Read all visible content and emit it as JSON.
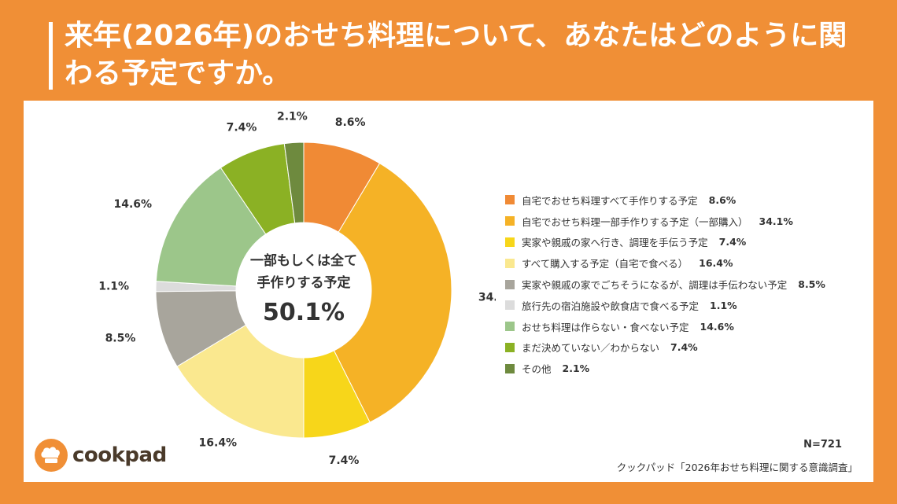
{
  "title": "来年(2026年)のおせち料理について、あなたはどのように関わる予定ですか。",
  "center": {
    "line1": "一部もしくは全て",
    "line2": "手作りする予定",
    "value": "50.1%"
  },
  "chart_data": {
    "type": "pie",
    "title": "来年(2026年)のおせち料理について、あなたはどのように関わる予定ですか。",
    "series": [
      {
        "label": "自宅でおせち料理すべて手作りする予定",
        "value": 8.6,
        "display": "8.6%",
        "color": "#F08A35"
      },
      {
        "label": "自宅でおせち料理一部手作りする予定（一部購入）",
        "value": 34.1,
        "display": "34.1%",
        "color": "#F5B226"
      },
      {
        "label": "実家や親戚の家へ行き、調理を手伝う予定",
        "value": 7.4,
        "display": "7.4%",
        "color": "#F7D61A"
      },
      {
        "label": "すべて購入する予定（自宅で食べる）",
        "value": 16.4,
        "display": "16.4%",
        "color": "#FAE88F"
      },
      {
        "label": "実家や親戚の家でごちそうになるが、調理は手伝わない予定",
        "value": 8.5,
        "display": "8.5%",
        "color": "#A8A59C"
      },
      {
        "label": "旅行先の宿泊施設や飲食店で食べる予定",
        "value": 1.1,
        "display": "1.1%",
        "color": "#DCDCDC"
      },
      {
        "label": "おせち料理は作らない・食べない予定",
        "value": 14.6,
        "display": "14.6%",
        "color": "#9CC68A"
      },
      {
        "label": "まだ決めていない／わからない",
        "value": 7.4,
        "display": "7.4%",
        "color": "#8BB124"
      },
      {
        "label": "その他",
        "value": 2.1,
        "display": "2.1%",
        "color": "#6E8A3E"
      }
    ],
    "legend_position": "right"
  },
  "footer": {
    "n": "N=721",
    "source": "クックパッド「2026年おせち料理に関する意識調査」",
    "logo": "cookpad",
    "logo_icon": "chef-hat-icon"
  }
}
